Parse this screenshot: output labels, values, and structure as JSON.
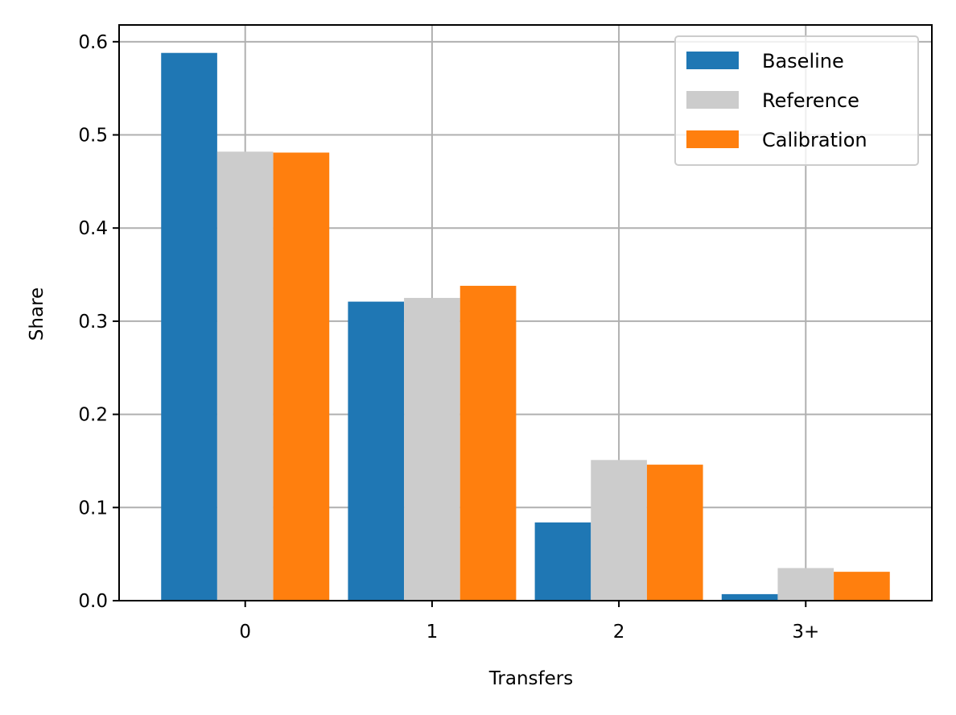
{
  "chart_data": {
    "type": "bar",
    "categories": [
      "0",
      "1",
      "2",
      "3+"
    ],
    "series": [
      {
        "name": "Baseline",
        "color": "#1f77b4",
        "values": [
          0.588,
          0.321,
          0.084,
          0.007
        ]
      },
      {
        "name": "Reference",
        "color": "#cccccc",
        "values": [
          0.482,
          0.325,
          0.151,
          0.035
        ]
      },
      {
        "name": "Calibration",
        "color": "#ff7f0e",
        "values": [
          0.481,
          0.338,
          0.146,
          0.031
        ]
      }
    ],
    "xlabel": "Transfers",
    "ylabel": "Share",
    "ylim": [
      0,
      0.618
    ],
    "yticks": [
      "0.0",
      "0.1",
      "0.2",
      "0.3",
      "0.4",
      "0.5",
      "0.6"
    ],
    "grid": true,
    "legend_position": "top-right"
  }
}
